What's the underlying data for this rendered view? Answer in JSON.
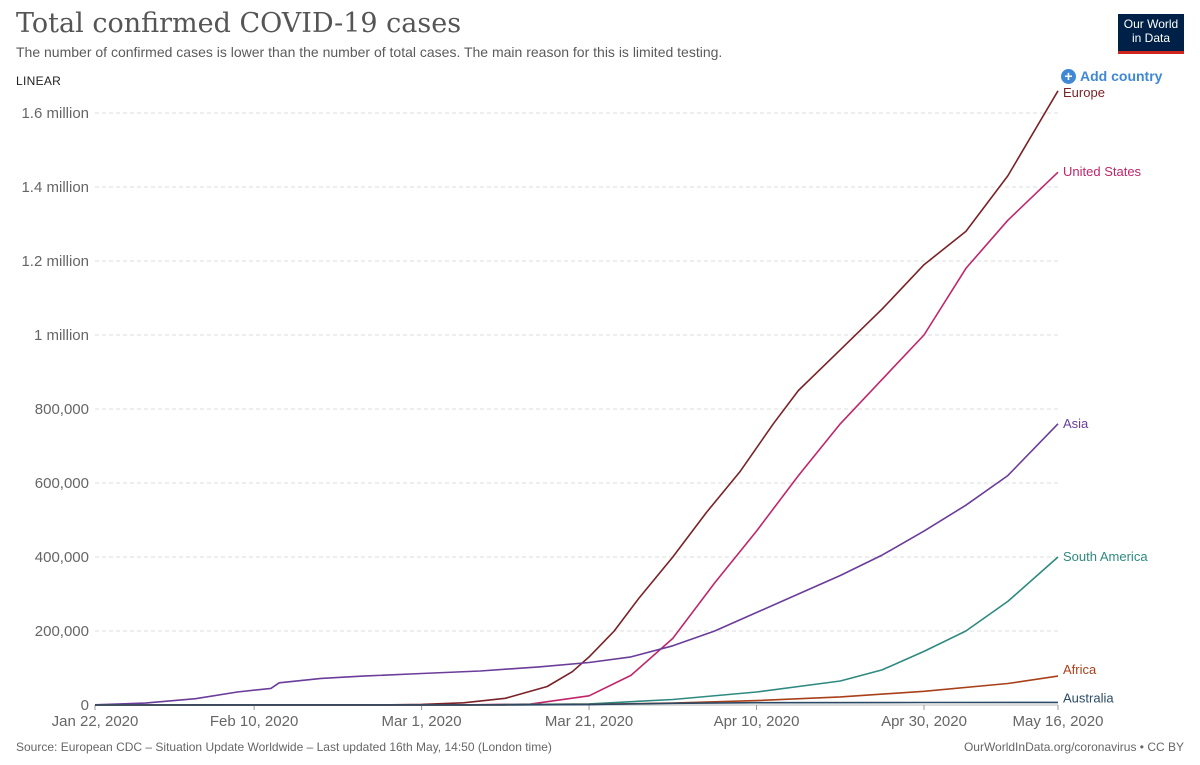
{
  "header": {
    "title": "Total confirmed COVID-19 cases",
    "subtitle": "The number of confirmed cases is lower than the number of total cases. The main reason for this is limited testing.",
    "logo_line1": "Our World",
    "logo_line2": "in Data",
    "scale_toggle": "LINEAR",
    "add_country": "Add country"
  },
  "footer": {
    "source": "Source: European CDC – Situation Update Worldwide – Last updated 16th May, 14:50 (London time)",
    "link": "OurWorldInData.org/coronavirus • CC BY"
  },
  "colors": {
    "Europe": "#7a2227",
    "United States": "#c0266a",
    "Asia": "#6a3d9a",
    "South America": "#2e8a80",
    "Africa": "#a8401a",
    "Australia": "#2c4a66"
  },
  "chart_data": {
    "type": "line",
    "title": "Total confirmed COVID-19 cases",
    "xlabel": "",
    "ylabel": "",
    "x_range": [
      "2020-01-22",
      "2020-05-16"
    ],
    "ylim": [
      0,
      1600000
    ],
    "grid": true,
    "x_ticks": [
      "Jan 22, 2020",
      "Feb 10, 2020",
      "Mar 1, 2020",
      "Mar 21, 2020",
      "Apr 10, 2020",
      "Apr 30, 2020",
      "May 16, 2020"
    ],
    "y_ticks": [
      {
        "value": 0,
        "label": "0"
      },
      {
        "value": 200000,
        "label": "200,000"
      },
      {
        "value": 400000,
        "label": "400,000"
      },
      {
        "value": 600000,
        "label": "600,000"
      },
      {
        "value": 800000,
        "label": "800,000"
      },
      {
        "value": 1000000,
        "label": "1 million"
      },
      {
        "value": 1200000,
        "label": "1.2 million"
      },
      {
        "value": 1400000,
        "label": "1.4 million"
      },
      {
        "value": 1600000,
        "label": "1.6 million"
      }
    ],
    "series": [
      {
        "name": "Europe",
        "points": [
          [
            "2020-01-22",
            0
          ],
          [
            "2020-02-25",
            0
          ],
          [
            "2020-03-01",
            1500
          ],
          [
            "2020-03-06",
            6000
          ],
          [
            "2020-03-11",
            18000
          ],
          [
            "2020-03-16",
            50000
          ],
          [
            "2020-03-19",
            90000
          ],
          [
            "2020-03-21",
            130000
          ],
          [
            "2020-03-24",
            200000
          ],
          [
            "2020-03-27",
            290000
          ],
          [
            "2020-03-31",
            400000
          ],
          [
            "2020-04-04",
            520000
          ],
          [
            "2020-04-08",
            630000
          ],
          [
            "2020-04-12",
            760000
          ],
          [
            "2020-04-15",
            850000
          ],
          [
            "2020-04-20",
            960000
          ],
          [
            "2020-04-25",
            1070000
          ],
          [
            "2020-04-30",
            1190000
          ],
          [
            "2020-05-05",
            1280000
          ],
          [
            "2020-05-10",
            1430000
          ],
          [
            "2020-05-16",
            1660000
          ]
        ]
      },
      {
        "name": "United States",
        "points": [
          [
            "2020-01-22",
            0
          ],
          [
            "2020-03-06",
            300
          ],
          [
            "2020-03-14",
            2500
          ],
          [
            "2020-03-21",
            25000
          ],
          [
            "2020-03-26",
            80000
          ],
          [
            "2020-03-31",
            180000
          ],
          [
            "2020-04-05",
            330000
          ],
          [
            "2020-04-10",
            470000
          ],
          [
            "2020-04-15",
            620000
          ],
          [
            "2020-04-20",
            760000
          ],
          [
            "2020-04-25",
            880000
          ],
          [
            "2020-04-30",
            1000000
          ],
          [
            "2020-05-05",
            1180000
          ],
          [
            "2020-05-10",
            1310000
          ],
          [
            "2020-05-16",
            1440000
          ]
        ]
      },
      {
        "name": "Asia",
        "points": [
          [
            "2020-01-22",
            500
          ],
          [
            "2020-01-28",
            5000
          ],
          [
            "2020-02-03",
            17000
          ],
          [
            "2020-02-08",
            35000
          ],
          [
            "2020-02-12",
            45000
          ],
          [
            "2020-02-13",
            60000
          ],
          [
            "2020-02-18",
            72000
          ],
          [
            "2020-02-23",
            78000
          ],
          [
            "2020-03-01",
            85000
          ],
          [
            "2020-03-08",
            92000
          ],
          [
            "2020-03-15",
            103000
          ],
          [
            "2020-03-21",
            115000
          ],
          [
            "2020-03-26",
            130000
          ],
          [
            "2020-03-31",
            160000
          ],
          [
            "2020-04-05",
            200000
          ],
          [
            "2020-04-10",
            250000
          ],
          [
            "2020-04-15",
            300000
          ],
          [
            "2020-04-20",
            350000
          ],
          [
            "2020-04-25",
            405000
          ],
          [
            "2020-04-30",
            470000
          ],
          [
            "2020-05-05",
            540000
          ],
          [
            "2020-05-10",
            620000
          ],
          [
            "2020-05-16",
            760000
          ]
        ]
      },
      {
        "name": "South America",
        "points": [
          [
            "2020-01-22",
            0
          ],
          [
            "2020-03-06",
            100
          ],
          [
            "2020-03-21",
            3000
          ],
          [
            "2020-03-31",
            15000
          ],
          [
            "2020-04-10",
            35000
          ],
          [
            "2020-04-20",
            65000
          ],
          [
            "2020-04-25",
            95000
          ],
          [
            "2020-04-30",
            145000
          ],
          [
            "2020-05-05",
            200000
          ],
          [
            "2020-05-10",
            280000
          ],
          [
            "2020-05-16",
            400000
          ]
        ]
      },
      {
        "name": "Africa",
        "points": [
          [
            "2020-01-22",
            0
          ],
          [
            "2020-03-11",
            200
          ],
          [
            "2020-03-21",
            1500
          ],
          [
            "2020-03-31",
            5500
          ],
          [
            "2020-04-10",
            12000
          ],
          [
            "2020-04-20",
            22000
          ],
          [
            "2020-04-30",
            37000
          ],
          [
            "2020-05-10",
            58000
          ],
          [
            "2020-05-16",
            78000
          ]
        ]
      },
      {
        "name": "Australia",
        "points": [
          [
            "2020-01-22",
            0
          ],
          [
            "2020-03-11",
            150
          ],
          [
            "2020-03-21",
            1000
          ],
          [
            "2020-03-31",
            4500
          ],
          [
            "2020-04-10",
            6200
          ],
          [
            "2020-04-30",
            6750
          ],
          [
            "2020-05-16",
            7000
          ]
        ]
      }
    ]
  }
}
